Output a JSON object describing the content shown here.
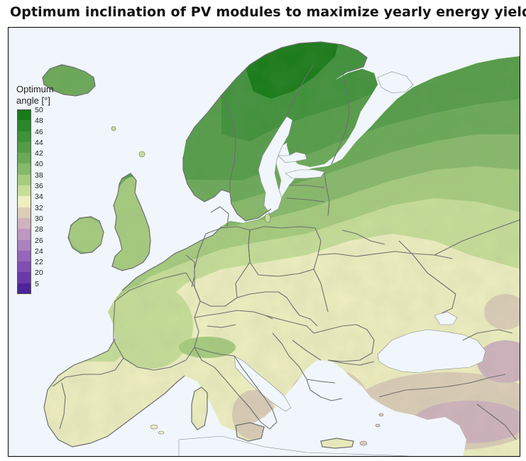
{
  "title": "Optimum inclination of PV modules to maximize yearly energy yield",
  "legend": {
    "title_line1": "Optimum",
    "title_line2": "angle [°]",
    "items": [
      {
        "label": "50",
        "color": "#177b17"
      },
      {
        "label": "48",
        "color": "#2c862a"
      },
      {
        "label": "46",
        "color": "#3f913a"
      },
      {
        "label": "44",
        "color": "#549c48"
      },
      {
        "label": "42",
        "color": "#6aa957"
      },
      {
        "label": "40",
        "color": "#86b96a"
      },
      {
        "label": "38",
        "color": "#a6cc7e"
      },
      {
        "label": "36",
        "color": "#c6de98"
      },
      {
        "label": "34",
        "color": "#eeefc0"
      },
      {
        "label": "32",
        "color": "#dccdb8"
      },
      {
        "label": "30",
        "color": "#cfb3be"
      },
      {
        "label": "28",
        "color": "#bd98c1"
      },
      {
        "label": "26",
        "color": "#aa80bf"
      },
      {
        "label": "24",
        "color": "#9566b9"
      },
      {
        "label": "22",
        "color": "#7f4fb1"
      },
      {
        "label": "20",
        "color": "#6a39a8"
      },
      {
        "label": "5",
        "color": "#4c2598"
      }
    ]
  },
  "colors": {
    "sea": "#f0f6fb",
    "border": "#6e6e6e",
    "frame": "#000000"
  }
}
